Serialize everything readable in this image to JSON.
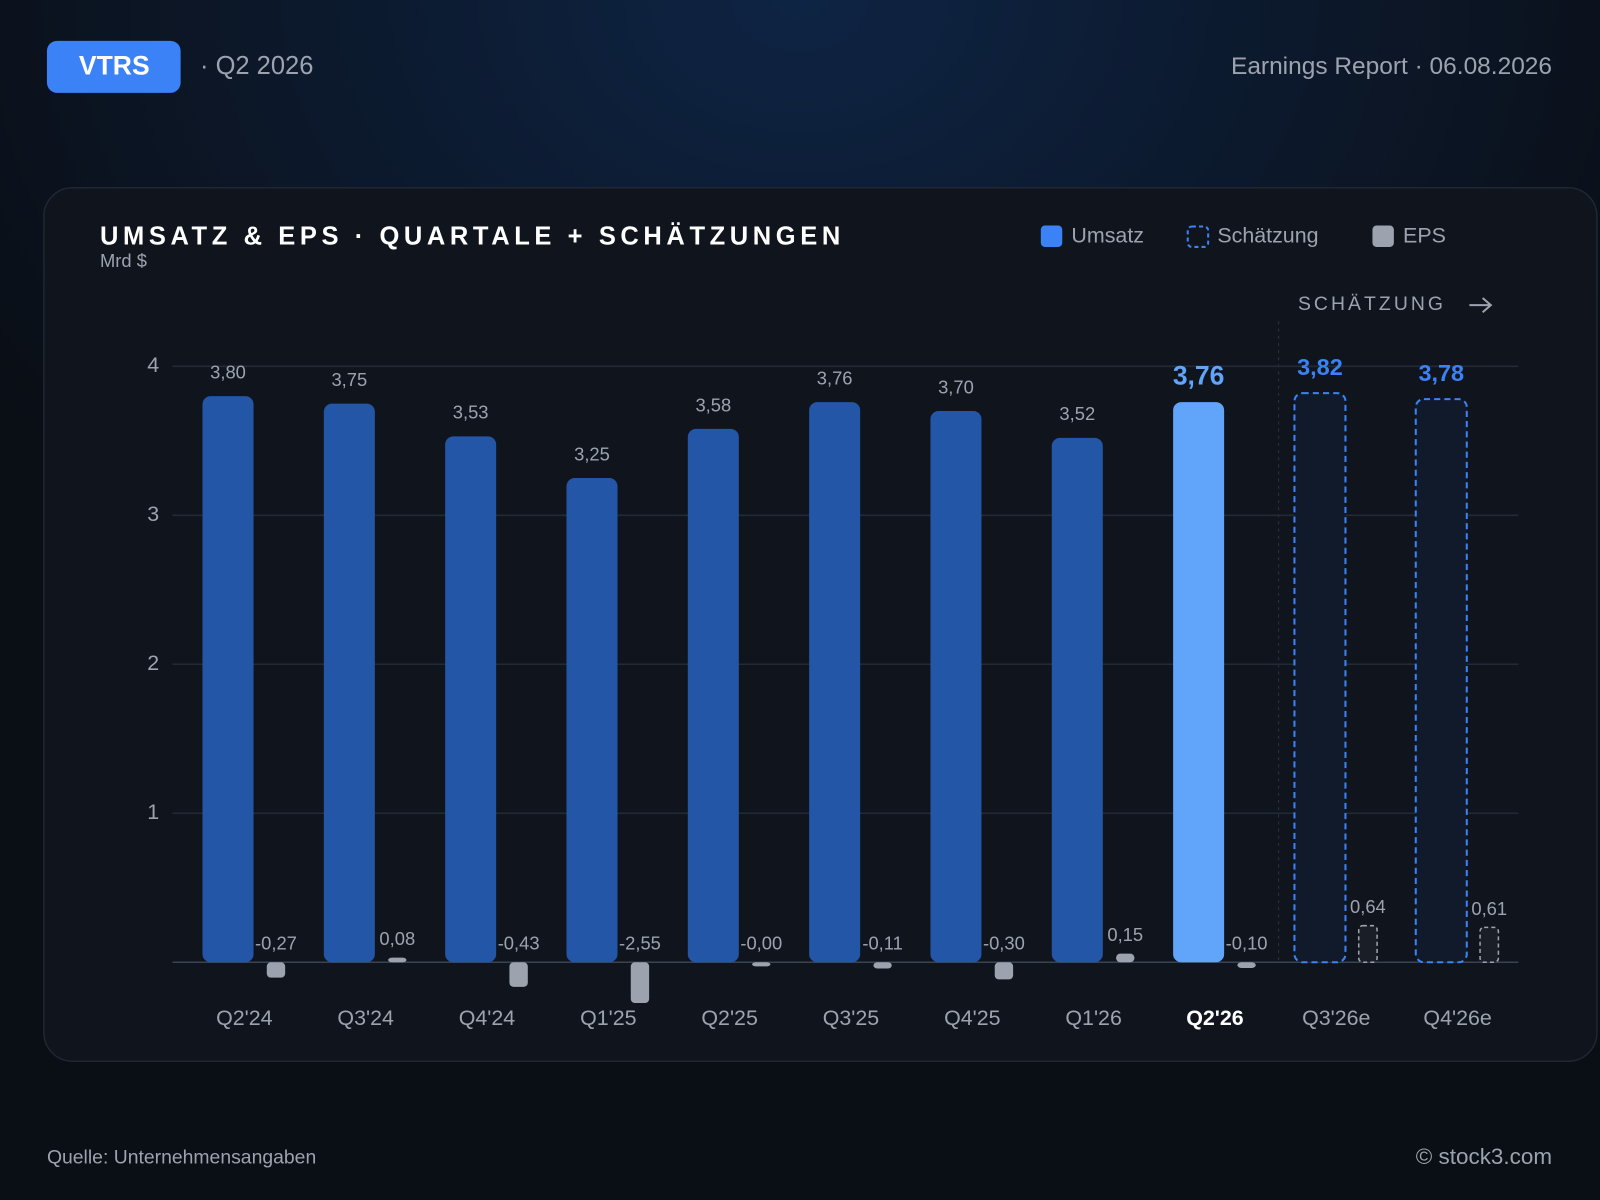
{
  "header": {
    "ticker": "VTRS",
    "period": "· Q2 2026",
    "report": "Earnings Report · 06.08.2026"
  },
  "chart_data": {
    "type": "bar",
    "title": "UMSATZ & EPS · QUARTALE + SCHÄTZUNGEN",
    "y_label": "Mrd $",
    "annotation": "SCHÄTZUNG",
    "categories": [
      "Q2'24",
      "Q3'24",
      "Q4'24",
      "Q1'25",
      "Q2'25",
      "Q3'25",
      "Q4'25",
      "Q1'26",
      "Q2'26",
      "Q3'26e",
      "Q4'26e"
    ],
    "series": [
      {
        "name": "Umsatz",
        "color": "#3b82f6",
        "values": [
          3.8,
          3.75,
          3.53,
          3.25,
          3.58,
          3.76,
          3.7,
          3.52,
          3.76,
          null,
          null
        ],
        "value_labels": [
          "3,80",
          "3,75",
          "3,53",
          "3,25",
          "3,58",
          "3,76",
          "3,70",
          "3,52",
          "3,76",
          null,
          null
        ]
      },
      {
        "name": "Schätzung",
        "color": "#3b82f6",
        "dashed": true,
        "values": [
          null,
          null,
          null,
          null,
          null,
          null,
          null,
          null,
          null,
          3.82,
          3.78
        ],
        "value_labels": [
          null,
          null,
          null,
          null,
          null,
          null,
          null,
          null,
          null,
          "3,82",
          "3,78"
        ]
      },
      {
        "name": "EPS",
        "color": "#9ca3af",
        "values": [
          -0.27,
          0.08,
          -0.43,
          -2.55,
          -0.0,
          -0.11,
          -0.3,
          0.15,
          -0.1,
          0.64,
          0.61
        ],
        "value_labels": [
          "-0,27",
          "0,08",
          "-0,43",
          "-2,55",
          "-0,00",
          "-0,11",
          "-0,30",
          "0,15",
          "-0,10",
          "0,64",
          "0,61"
        ]
      }
    ],
    "ylim": [
      0,
      4
    ],
    "yticks": [
      1,
      2,
      3,
      4
    ],
    "grid": true
  },
  "footer": {
    "source": "Quelle: Unternehmensangaben",
    "copyright": "© stock3.com"
  }
}
